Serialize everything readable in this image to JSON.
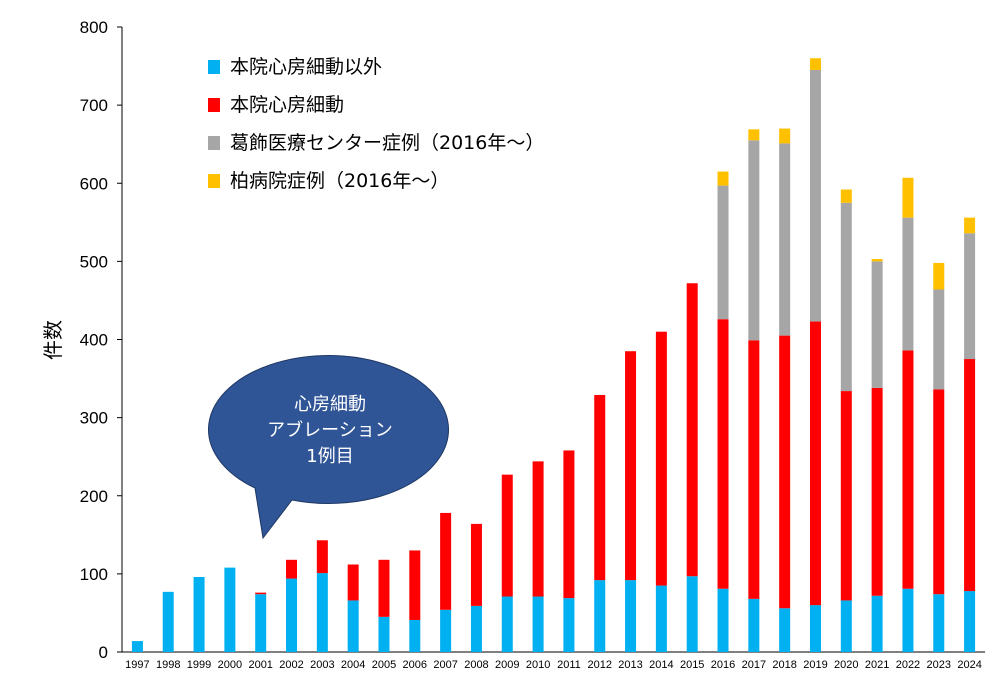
{
  "chart_data": {
    "type": "bar",
    "stacked": true,
    "ylabel": "件数",
    "ylim": [
      0,
      800
    ],
    "yticks": [
      0,
      100,
      200,
      300,
      400,
      500,
      600,
      700,
      800
    ],
    "grid": false,
    "legend_position": "top-left",
    "categories": [
      "1997",
      "1998",
      "1999",
      "2000",
      "2001",
      "2002",
      "2003",
      "2004",
      "2005",
      "2006",
      "2007",
      "2008",
      "2009",
      "2010",
      "2011",
      "2012",
      "2013",
      "2014",
      "2015",
      "2016",
      "2017",
      "2018",
      "2019",
      "2020",
      "2021",
      "2022",
      "2023",
      "2024"
    ],
    "series": [
      {
        "name": "本院心房細動以外",
        "color": "#00b0f0",
        "values": [
          14,
          77,
          96,
          108,
          74,
          94,
          101,
          66,
          45,
          41,
          54,
          59,
          71,
          71,
          69,
          92,
          92,
          85,
          97,
          81,
          68,
          56,
          60,
          66,
          72,
          81,
          74,
          78
        ]
      },
      {
        "name": "本院心房細動",
        "color": "#ff0000",
        "values": [
          0,
          0,
          0,
          0,
          2,
          24,
          42,
          46,
          73,
          89,
          124,
          105,
          156,
          173,
          189,
          237,
          293,
          325,
          375,
          345,
          331,
          349,
          363,
          268,
          266,
          305,
          262,
          297
        ]
      },
      {
        "name": "葛飾医療センター症例（2016年～）",
        "color": "#a6a6a6",
        "values": [
          0,
          0,
          0,
          0,
          0,
          0,
          0,
          0,
          0,
          0,
          0,
          0,
          0,
          0,
          0,
          0,
          0,
          0,
          0,
          171,
          256,
          246,
          322,
          241,
          162,
          170,
          128,
          161
        ]
      },
      {
        "name": "柏病院症例（2016年～）",
        "color": "#ffc000",
        "values": [
          0,
          0,
          0,
          0,
          0,
          0,
          0,
          0,
          0,
          0,
          0,
          0,
          0,
          0,
          0,
          0,
          0,
          0,
          0,
          18,
          14,
          19,
          15,
          17,
          3,
          51,
          34,
          20
        ]
      }
    ],
    "annotations": [
      {
        "lines": [
          "心房細動",
          "アブレーション",
          "1例目"
        ],
        "color": "#2f5597",
        "points_to": "2001"
      }
    ]
  }
}
